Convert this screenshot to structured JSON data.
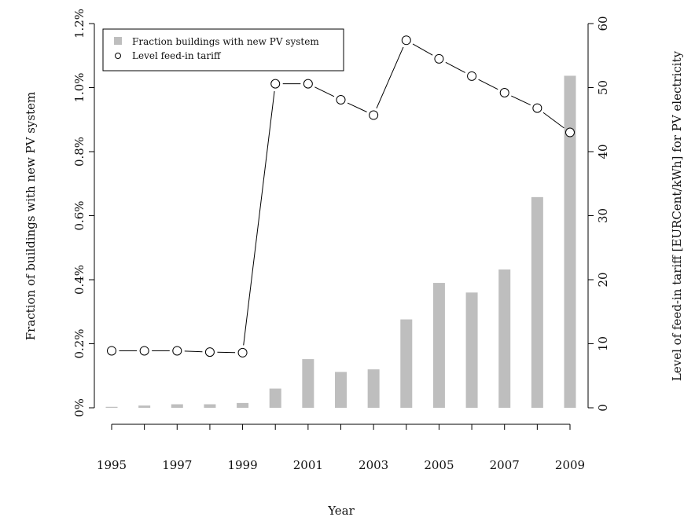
{
  "chart_data": {
    "type": "bar",
    "xlabel": "Year",
    "ylabel": "Fraction of buildings with new PV system",
    "y2label": "Level of feed-in tariff [EURCent/kWh] for PV electricity",
    "categories": [
      1995,
      1996,
      1997,
      1998,
      1999,
      2000,
      2001,
      2002,
      2003,
      2004,
      2005,
      2006,
      2007,
      2008,
      2009
    ],
    "x_tick_labels": [
      "1995",
      "1997",
      "1999",
      "2001",
      "2003",
      "2005",
      "2007",
      "2009"
    ],
    "x_tick_values": [
      1995,
      1996,
      1997,
      1998,
      1999,
      2000,
      2001,
      2002,
      2003,
      2004,
      2005,
      2006,
      2007,
      2008,
      2009
    ],
    "x_label_values": [
      1995,
      1997,
      1999,
      2001,
      2003,
      2005,
      2007,
      2009
    ],
    "ylim": [
      0,
      1.2
    ],
    "y_ticks": [
      0,
      0.2,
      0.4,
      0.6,
      0.8,
      1.0,
      1.2
    ],
    "y_tick_labels": [
      "0%",
      "0.2%",
      "0.4%",
      "0.6%",
      "0.8%",
      "1.0%",
      "1.2%"
    ],
    "y2lim": [
      0,
      60
    ],
    "y2_ticks": [
      0,
      10,
      20,
      30,
      40,
      50,
      60
    ],
    "y2_tick_labels": [
      "0",
      "10",
      "20",
      "30",
      "40",
      "50",
      "60"
    ],
    "series": [
      {
        "name": "Fraction buildings with new PV system",
        "type": "bar",
        "axis": "left",
        "color": "#bebebe",
        "values": [
          0.003,
          0.007,
          0.011,
          0.011,
          0.015,
          0.06,
          0.152,
          0.112,
          0.12,
          0.276,
          0.39,
          0.36,
          0.432,
          0.658,
          1.037
        ]
      },
      {
        "name": "Level feed-in tariff",
        "type": "line",
        "axis": "right",
        "color": "#000000",
        "values": [
          8.9,
          8.9,
          8.9,
          8.7,
          8.6,
          50.6,
          50.6,
          48.1,
          45.7,
          57.4,
          54.5,
          51.8,
          49.2,
          46.8,
          43.0
        ]
      }
    ],
    "legend": {
      "position": "top-left",
      "items": [
        {
          "label": "Fraction buildings with new PV system",
          "symbol": "square"
        },
        {
          "label": "Level feed-in tariff",
          "symbol": "circle"
        }
      ]
    }
  }
}
